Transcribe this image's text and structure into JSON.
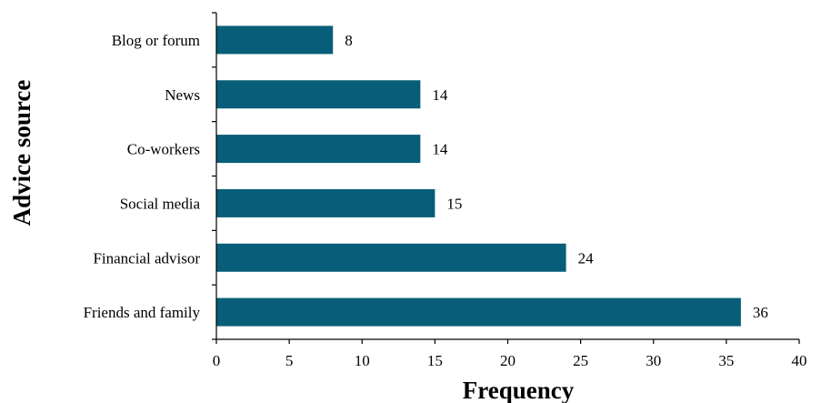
{
  "chart_data": {
    "type": "bar",
    "orientation": "horizontal",
    "categories": [
      "Blog or forum",
      "News",
      "Co-workers",
      "Social media",
      "Financial advisor",
      "Friends and family"
    ],
    "values": [
      8,
      14,
      14,
      15,
      24,
      36
    ],
    "data_labels": [
      "8",
      "14",
      "14",
      "15",
      "24",
      "36"
    ],
    "title": "",
    "xlabel": "Frequency",
    "ylabel": "Advice source",
    "xlim": [
      0,
      40
    ],
    "xticks": [
      "0",
      "5",
      "10",
      "15",
      "20",
      "25",
      "30",
      "35",
      "40"
    ],
    "grid": false,
    "legend": "none",
    "bar_color": "#085e78"
  }
}
